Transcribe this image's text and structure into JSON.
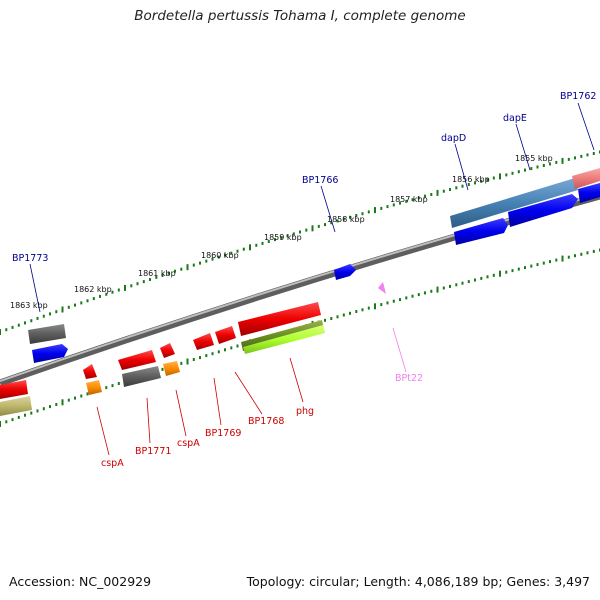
{
  "title": "Bordetella pertussis Tohama I, complete genome",
  "footer": {
    "accession": "Accession: NC_002929",
    "summary": "Topology: circular; Length: 4,086,189 bp; Genes: 3,497"
  },
  "colors": {
    "backbone": "#7f7f7f",
    "ticks": "#1a7a1a",
    "label_forward": "#00008b",
    "label_reverse": "#cc0000",
    "label_rna": "#ee82ee"
  },
  "scale_ticks": [
    "1863 kbp",
    "1862 kbp",
    "1861 kbp",
    "1860 kbp",
    "1859 kbp",
    "1858 kbp",
    "1857 kbp",
    "1856 kbp",
    "1855 kbp"
  ],
  "gene_labels": {
    "BP1773": "BP1773",
    "BP1766": "BP1766",
    "dapD": "dapD",
    "dapE": "dapE",
    "BP1762": "BP1762",
    "BPt22": "BPt22",
    "cspA_1": "cspA",
    "BP1771": "BP1771",
    "cspA_2": "cspA",
    "BP1769": "BP1769",
    "BP1768": "BP1768",
    "phg": "phg"
  }
}
